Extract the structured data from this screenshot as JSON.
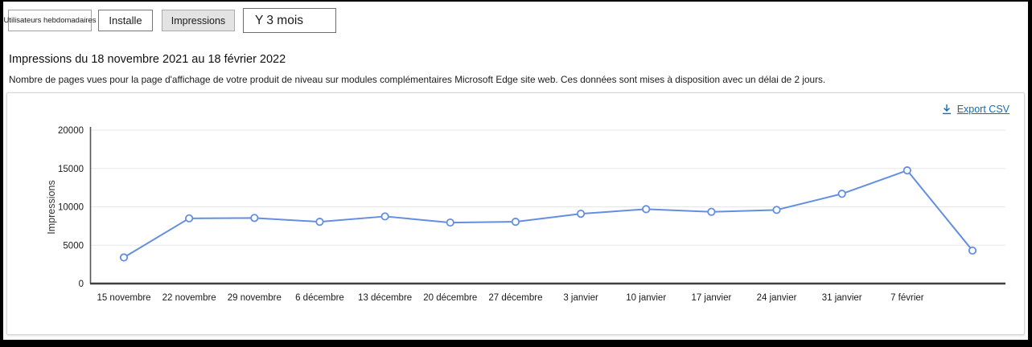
{
  "toolbar": {
    "tabs": [
      {
        "label": "Utilisateurs hebdomadaires",
        "selected": false
      },
      {
        "label": "Installe",
        "selected": false
      },
      {
        "label": "Impressions",
        "selected": true
      }
    ],
    "range_selector": "Y 3 mois"
  },
  "header": {
    "title": "Impressions du 18 novembre 2021 au 18 février 2022",
    "description": "Nombre de pages vues pour la page d'affichage de votre produit de niveau sur modules complémentaires Microsoft Edge site web. Ces données sont mises à disposition avec un délai de 2 jours."
  },
  "card": {
    "export_label": "Export CSV",
    "export_icon": "download-icon"
  },
  "chart_data": {
    "type": "line",
    "title": "",
    "xlabel": "",
    "ylabel": "Impressions",
    "categories": [
      "15 novembre",
      "22 novembre",
      "29 novembre",
      "6 décembre",
      "13 décembre",
      "20 décembre",
      "27 décembre",
      "3 janvier",
      "10 janvier",
      "17 janvier",
      "24 janvier",
      "31 janvier",
      "7 février",
      ""
    ],
    "values": [
      3400,
      8500,
      8550,
      8050,
      8750,
      7950,
      8050,
      9100,
      9700,
      9350,
      9600,
      11700,
      14750,
      4300
    ],
    "ylim": [
      0,
      20000
    ],
    "yticks": [
      0,
      5000,
      10000,
      15000,
      20000
    ],
    "grid": true,
    "legend": "none",
    "line_color": "#648ee0",
    "point_style": "open-circle",
    "grid_color": "#e7e7e7",
    "axis_color": "#3f3f3f",
    "tick_text_color": "#1a1a1a"
  }
}
